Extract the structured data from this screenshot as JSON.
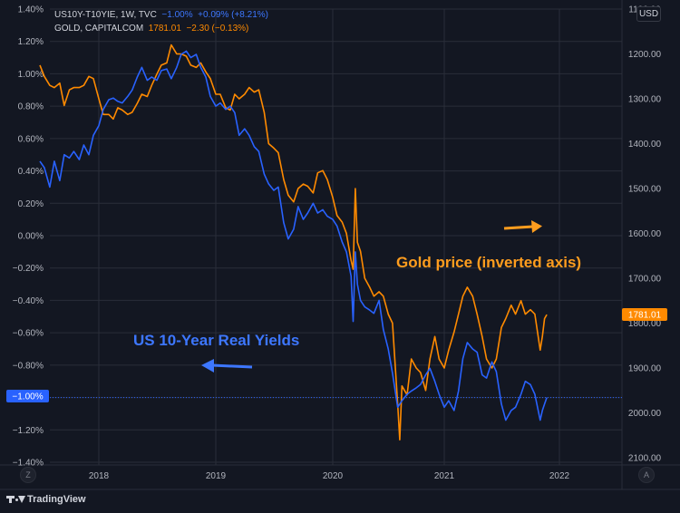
{
  "legend": {
    "yields": {
      "symbol": "US10Y-T10YIE, 1W, TVC",
      "value": "−1.00%",
      "change": "+0.09% (+8.21%)"
    },
    "gold": {
      "symbol": "GOLD, CAPITALCOM",
      "value": "1781.01",
      "change": "−2.30 (−0.13%)"
    }
  },
  "currency_badge": "USD",
  "corner_left": "Z",
  "corner_right": "A",
  "brand": "TradingView",
  "colors": {
    "background": "#131722",
    "grid": "#2a2e39",
    "yields": "#2962ff",
    "gold": "#ff8a00",
    "axis_text": "#b2b5be"
  },
  "chart_data": {
    "type": "line",
    "x_ticks": [
      "2018",
      "2019",
      "2020",
      "2021",
      "2022"
    ],
    "y_left": {
      "ticks": [
        "1.40%",
        "1.20%",
        "1.00%",
        "0.80%",
        "0.60%",
        "0.40%",
        "0.20%",
        "0.00%",
        "−0.20%",
        "−0.40%",
        "−0.60%",
        "−0.80%",
        "−1.00%",
        "−1.20%",
        "−1.40%"
      ],
      "range": [
        -1.4,
        1.4
      ]
    },
    "y_right": {
      "ticks": [
        "1100.00",
        "1200.00",
        "1300.00",
        "1400.00",
        "1500.00",
        "1600.00",
        "1700.00",
        "1800.00",
        "1900.00",
        "2000.00",
        "2100.00"
      ],
      "range": [
        1100,
        2100
      ],
      "inverted": true
    },
    "last_value_labels": {
      "yields": "−1.00%",
      "gold": "1781.01"
    },
    "annotations": {
      "gold": "Gold price (inverted axis)",
      "yields": "US 10-Year Real Yields"
    },
    "series": [
      {
        "name": "US10Y-T10YIE",
        "axis": "left",
        "points": [
          [
            "2017-07-01",
            0.46
          ],
          [
            "2017-07-15",
            0.42
          ],
          [
            "2017-08-01",
            0.3
          ],
          [
            "2017-08-15",
            0.46
          ],
          [
            "2017-09-01",
            0.34
          ],
          [
            "2017-09-15",
            0.5
          ],
          [
            "2017-10-01",
            0.48
          ],
          [
            "2017-10-15",
            0.52
          ],
          [
            "2017-11-01",
            0.47
          ],
          [
            "2017-11-15",
            0.56
          ],
          [
            "2017-12-01",
            0.5
          ],
          [
            "2017-12-15",
            0.62
          ],
          [
            "2018-01-01",
            0.68
          ],
          [
            "2018-01-15",
            0.78
          ],
          [
            "2018-02-01",
            0.84
          ],
          [
            "2018-02-15",
            0.85
          ],
          [
            "2018-03-01",
            0.83
          ],
          [
            "2018-03-15",
            0.82
          ],
          [
            "2018-04-01",
            0.86
          ],
          [
            "2018-04-15",
            0.9
          ],
          [
            "2018-05-01",
            0.98
          ],
          [
            "2018-05-15",
            1.04
          ],
          [
            "2018-06-01",
            0.96
          ],
          [
            "2018-06-15",
            0.98
          ],
          [
            "2018-07-01",
            0.96
          ],
          [
            "2018-07-15",
            1.02
          ],
          [
            "2018-08-01",
            1.03
          ],
          [
            "2018-08-15",
            0.97
          ],
          [
            "2018-09-01",
            1.04
          ],
          [
            "2018-09-15",
            1.12
          ],
          [
            "2018-10-01",
            1.14
          ],
          [
            "2018-10-15",
            1.1
          ],
          [
            "2018-11-01",
            1.12
          ],
          [
            "2018-11-15",
            1.04
          ],
          [
            "2018-12-01",
            0.98
          ],
          [
            "2018-12-15",
            0.86
          ],
          [
            "2019-01-01",
            0.8
          ],
          [
            "2019-01-15",
            0.82
          ],
          [
            "2019-02-01",
            0.78
          ],
          [
            "2019-02-15",
            0.8
          ],
          [
            "2019-03-01",
            0.76
          ],
          [
            "2019-03-15",
            0.62
          ],
          [
            "2019-04-01",
            0.66
          ],
          [
            "2019-04-15",
            0.62
          ],
          [
            "2019-05-01",
            0.55
          ],
          [
            "2019-05-15",
            0.52
          ],
          [
            "2019-06-01",
            0.38
          ],
          [
            "2019-06-15",
            0.32
          ],
          [
            "2019-07-01",
            0.28
          ],
          [
            "2019-07-15",
            0.3
          ],
          [
            "2019-08-01",
            0.08
          ],
          [
            "2019-08-15",
            -0.02
          ],
          [
            "2019-09-01",
            0.04
          ],
          [
            "2019-09-15",
            0.18
          ],
          [
            "2019-10-01",
            0.1
          ],
          [
            "2019-10-15",
            0.14
          ],
          [
            "2019-11-01",
            0.2
          ],
          [
            "2019-11-15",
            0.14
          ],
          [
            "2019-12-01",
            0.16
          ],
          [
            "2019-12-15",
            0.12
          ],
          [
            "2020-01-01",
            0.1
          ],
          [
            "2020-01-15",
            0.06
          ],
          [
            "2020-02-01",
            -0.04
          ],
          [
            "2020-02-15",
            -0.1
          ],
          [
            "2020-03-01",
            -0.25
          ],
          [
            "2020-03-08",
            -0.53
          ],
          [
            "2020-03-15",
            -0.1
          ],
          [
            "2020-03-22",
            -0.3
          ],
          [
            "2020-04-01",
            -0.4
          ],
          [
            "2020-04-15",
            -0.44
          ],
          [
            "2020-05-01",
            -0.46
          ],
          [
            "2020-05-15",
            -0.48
          ],
          [
            "2020-06-01",
            -0.4
          ],
          [
            "2020-06-15",
            -0.58
          ],
          [
            "2020-07-01",
            -0.7
          ],
          [
            "2020-07-15",
            -0.85
          ],
          [
            "2020-08-01",
            -1.06
          ],
          [
            "2020-08-15",
            -1.02
          ],
          [
            "2020-09-01",
            -0.98
          ],
          [
            "2020-09-15",
            -0.96
          ],
          [
            "2020-10-01",
            -0.94
          ],
          [
            "2020-10-15",
            -0.92
          ],
          [
            "2020-11-01",
            -0.86
          ],
          [
            "2020-11-15",
            -0.82
          ],
          [
            "2020-12-01",
            -0.9
          ],
          [
            "2020-12-15",
            -0.98
          ],
          [
            "2021-01-01",
            -1.06
          ],
          [
            "2021-01-15",
            -1.02
          ],
          [
            "2021-02-01",
            -1.08
          ],
          [
            "2021-02-15",
            -0.96
          ],
          [
            "2021-03-01",
            -0.76
          ],
          [
            "2021-03-15",
            -0.66
          ],
          [
            "2021-04-01",
            -0.7
          ],
          [
            "2021-04-15",
            -0.72
          ],
          [
            "2021-05-01",
            -0.86
          ],
          [
            "2021-05-15",
            -0.88
          ],
          [
            "2021-06-01",
            -0.78
          ],
          [
            "2021-06-15",
            -0.84
          ],
          [
            "2021-07-01",
            -1.04
          ],
          [
            "2021-07-15",
            -1.14
          ],
          [
            "2021-08-01",
            -1.08
          ],
          [
            "2021-08-15",
            -1.06
          ],
          [
            "2021-09-01",
            -0.98
          ],
          [
            "2021-09-15",
            -0.9
          ],
          [
            "2021-10-01",
            -0.92
          ],
          [
            "2021-10-15",
            -0.98
          ],
          [
            "2021-11-01",
            -1.14
          ],
          [
            "2021-11-08",
            -1.08
          ],
          [
            "2021-11-15",
            -1.04
          ],
          [
            "2021-11-22",
            -1.0
          ]
        ]
      },
      {
        "name": "GOLD",
        "axis": "right",
        "points": [
          [
            "2017-07-01",
            1225
          ],
          [
            "2017-07-15",
            1250
          ],
          [
            "2017-08-01",
            1270
          ],
          [
            "2017-08-15",
            1275
          ],
          [
            "2017-09-01",
            1265
          ],
          [
            "2017-09-15",
            1315
          ],
          [
            "2017-10-01",
            1280
          ],
          [
            "2017-10-15",
            1275
          ],
          [
            "2017-11-01",
            1275
          ],
          [
            "2017-11-15",
            1270
          ],
          [
            "2017-12-01",
            1250
          ],
          [
            "2017-12-15",
            1255
          ],
          [
            "2018-01-01",
            1300
          ],
          [
            "2018-01-15",
            1335
          ],
          [
            "2018-02-01",
            1335
          ],
          [
            "2018-02-15",
            1345
          ],
          [
            "2018-03-01",
            1320
          ],
          [
            "2018-03-15",
            1325
          ],
          [
            "2018-04-01",
            1335
          ],
          [
            "2018-04-15",
            1330
          ],
          [
            "2018-05-01",
            1310
          ],
          [
            "2018-05-15",
            1290
          ],
          [
            "2018-06-01",
            1295
          ],
          [
            "2018-06-15",
            1270
          ],
          [
            "2018-07-01",
            1245
          ],
          [
            "2018-07-15",
            1225
          ],
          [
            "2018-08-01",
            1220
          ],
          [
            "2018-08-15",
            1180
          ],
          [
            "2018-09-01",
            1200
          ],
          [
            "2018-09-15",
            1200
          ],
          [
            "2018-10-01",
            1205
          ],
          [
            "2018-10-15",
            1225
          ],
          [
            "2018-11-01",
            1230
          ],
          [
            "2018-11-15",
            1220
          ],
          [
            "2018-12-01",
            1240
          ],
          [
            "2018-12-15",
            1255
          ],
          [
            "2019-01-01",
            1290
          ],
          [
            "2019-01-15",
            1290
          ],
          [
            "2019-02-01",
            1320
          ],
          [
            "2019-02-15",
            1325
          ],
          [
            "2019-03-01",
            1290
          ],
          [
            "2019-03-15",
            1300
          ],
          [
            "2019-04-01",
            1290
          ],
          [
            "2019-04-15",
            1275
          ],
          [
            "2019-05-01",
            1285
          ],
          [
            "2019-05-15",
            1280
          ],
          [
            "2019-06-01",
            1330
          ],
          [
            "2019-06-15",
            1400
          ],
          [
            "2019-07-01",
            1410
          ],
          [
            "2019-07-15",
            1420
          ],
          [
            "2019-08-01",
            1480
          ],
          [
            "2019-08-15",
            1515
          ],
          [
            "2019-09-01",
            1530
          ],
          [
            "2019-09-15",
            1500
          ],
          [
            "2019-10-01",
            1490
          ],
          [
            "2019-10-15",
            1495
          ],
          [
            "2019-11-01",
            1510
          ],
          [
            "2019-11-15",
            1465
          ],
          [
            "2019-12-01",
            1460
          ],
          [
            "2019-12-15",
            1480
          ],
          [
            "2020-01-01",
            1520
          ],
          [
            "2020-01-15",
            1560
          ],
          [
            "2020-02-01",
            1575
          ],
          [
            "2020-02-15",
            1600
          ],
          [
            "2020-03-01",
            1660
          ],
          [
            "2020-03-08",
            1680
          ],
          [
            "2020-03-15",
            1500
          ],
          [
            "2020-03-22",
            1620
          ],
          [
            "2020-04-01",
            1640
          ],
          [
            "2020-04-15",
            1700
          ],
          [
            "2020-05-01",
            1720
          ],
          [
            "2020-05-15",
            1740
          ],
          [
            "2020-06-01",
            1730
          ],
          [
            "2020-06-15",
            1740
          ],
          [
            "2020-07-01",
            1780
          ],
          [
            "2020-07-15",
            1800
          ],
          [
            "2020-08-01",
            1980
          ],
          [
            "2020-08-08",
            2060
          ],
          [
            "2020-08-15",
            1940
          ],
          [
            "2020-09-01",
            1960
          ],
          [
            "2020-09-15",
            1880
          ],
          [
            "2020-10-01",
            1900
          ],
          [
            "2020-10-15",
            1910
          ],
          [
            "2020-11-01",
            1950
          ],
          [
            "2020-11-15",
            1880
          ],
          [
            "2020-12-01",
            1830
          ],
          [
            "2020-12-15",
            1880
          ],
          [
            "2021-01-01",
            1900
          ],
          [
            "2021-01-15",
            1860
          ],
          [
            "2021-02-01",
            1820
          ],
          [
            "2021-02-15",
            1780
          ],
          [
            "2021-03-01",
            1740
          ],
          [
            "2021-03-15",
            1720
          ],
          [
            "2021-04-01",
            1740
          ],
          [
            "2021-04-15",
            1780
          ],
          [
            "2021-05-01",
            1830
          ],
          [
            "2021-05-15",
            1880
          ],
          [
            "2021-06-01",
            1900
          ],
          [
            "2021-06-15",
            1880
          ],
          [
            "2021-07-01",
            1810
          ],
          [
            "2021-07-15",
            1790
          ],
          [
            "2021-08-01",
            1760
          ],
          [
            "2021-08-15",
            1780
          ],
          [
            "2021-09-01",
            1750
          ],
          [
            "2021-09-15",
            1780
          ],
          [
            "2021-10-01",
            1770
          ],
          [
            "2021-10-15",
            1780
          ],
          [
            "2021-11-01",
            1860
          ],
          [
            "2021-11-08",
            1830
          ],
          [
            "2021-11-15",
            1790
          ],
          [
            "2021-11-22",
            1781
          ]
        ]
      }
    ]
  }
}
